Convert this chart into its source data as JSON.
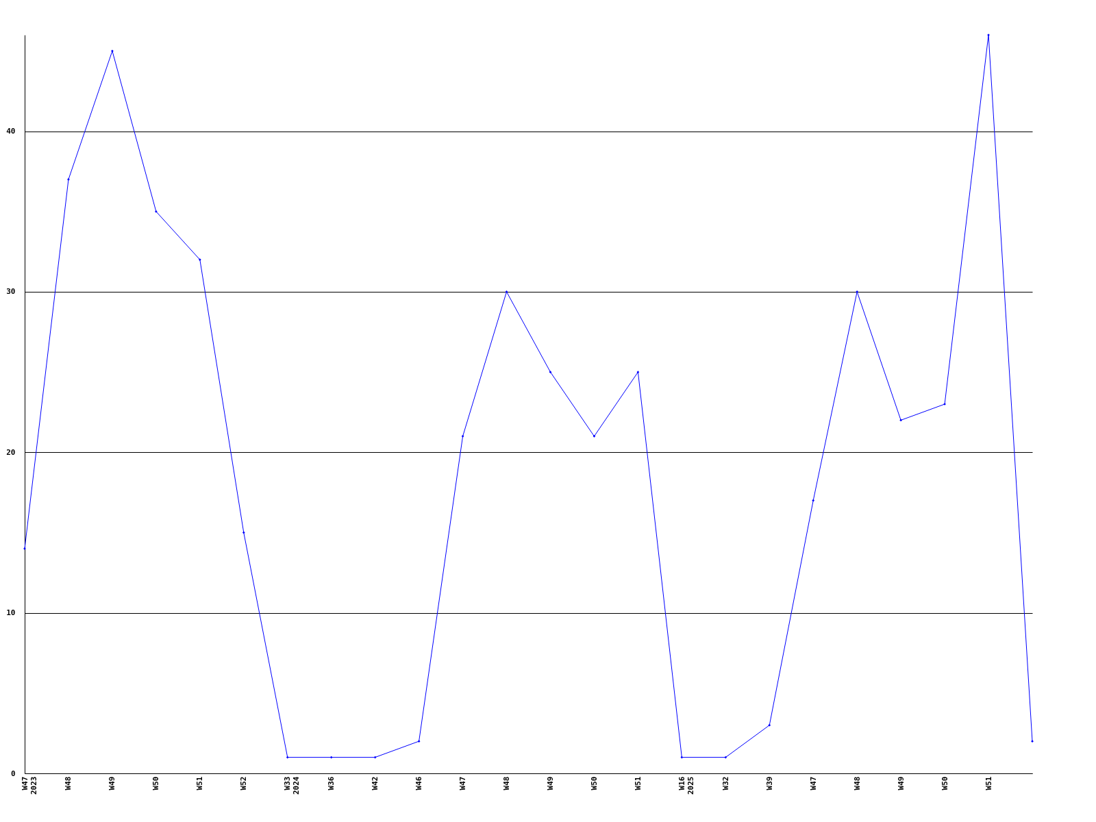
{
  "chart_data": {
    "type": "line",
    "categories": [
      "W47\n2023",
      "W48",
      "W49",
      "W50",
      "W51",
      "W52",
      "W33\n2024",
      "W36",
      "W42",
      "W46",
      "W47",
      "W48",
      "W49",
      "W50",
      "W51",
      "W16\n2025",
      "W32",
      "W39",
      "W47",
      "W48",
      "W49",
      "W50",
      "W51",
      null
    ],
    "series": [
      {
        "color": "#0000ff",
        "values": [
          14,
          37,
          45,
          35,
          32,
          15,
          1,
          1,
          1,
          2,
          21,
          30,
          25,
          21,
          25,
          1,
          1,
          3,
          17,
          30,
          22,
          23,
          46,
          2
        ]
      }
    ],
    "ylim": [
      0,
      46
    ],
    "yticks": [
      0,
      10,
      20,
      30,
      40
    ],
    "grid": "y",
    "marker": "diamond",
    "line_style": "solid",
    "legend": false
  }
}
